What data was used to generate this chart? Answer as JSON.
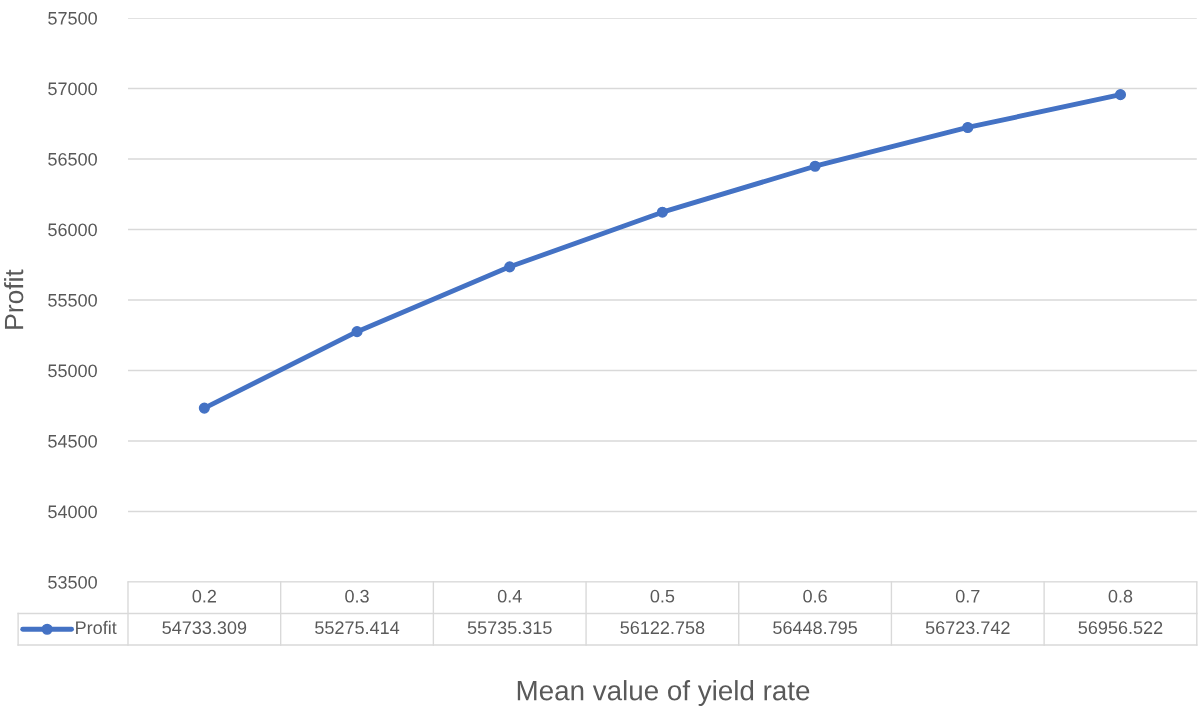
{
  "chart_data": {
    "type": "line",
    "xlabel": "Mean value of yield rate",
    "ylabel": "Profit",
    "categories": [
      "0.2",
      "0.3",
      "0.4",
      "0.5",
      "0.6",
      "0.7",
      "0.8"
    ],
    "series": [
      {
        "name": "Profit",
        "color": "#4472c4",
        "values": [
          54733.309,
          55275.414,
          55735.315,
          56122.758,
          56448.795,
          56723.742,
          56956.522
        ]
      }
    ],
    "ylim": [
      53500,
      57500
    ],
    "yticks": [
      53500,
      54000,
      54500,
      55000,
      55500,
      56000,
      56500,
      57000,
      57500
    ],
    "grid": "y",
    "marker": "circle",
    "line_style": "solid",
    "legend": "bottom",
    "data_labels": true
  }
}
